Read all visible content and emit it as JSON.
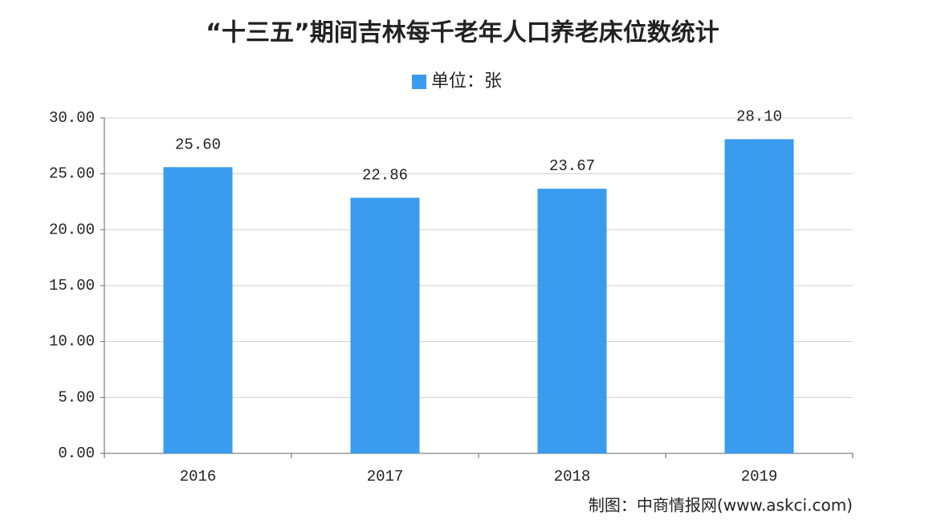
{
  "chart_data": {
    "type": "bar",
    "title": "“十三五”期间吉林每千老年人口养老床位数统计",
    "legend": "单位：张",
    "source": "制图：中商情报网(www.askci.com)",
    "categories": [
      "2016",
      "2017",
      "2018",
      "2019"
    ],
    "values": [
      25.6,
      22.86,
      23.67,
      28.1
    ],
    "value_labels": [
      "25.60",
      "22.86",
      "23.67",
      "28.10"
    ],
    "color": "#3a9bef",
    "ylim": [
      0,
      30
    ],
    "yticks": [
      {
        "value": 0,
        "label": "0.00"
      },
      {
        "value": 5,
        "label": "5.00"
      },
      {
        "value": 10,
        "label": "10.00"
      },
      {
        "value": 15,
        "label": "15.00"
      },
      {
        "value": 20,
        "label": "20.00"
      },
      {
        "value": 25,
        "label": "25.00"
      },
      {
        "value": 30,
        "label": "30.00"
      }
    ],
    "grid": true
  }
}
